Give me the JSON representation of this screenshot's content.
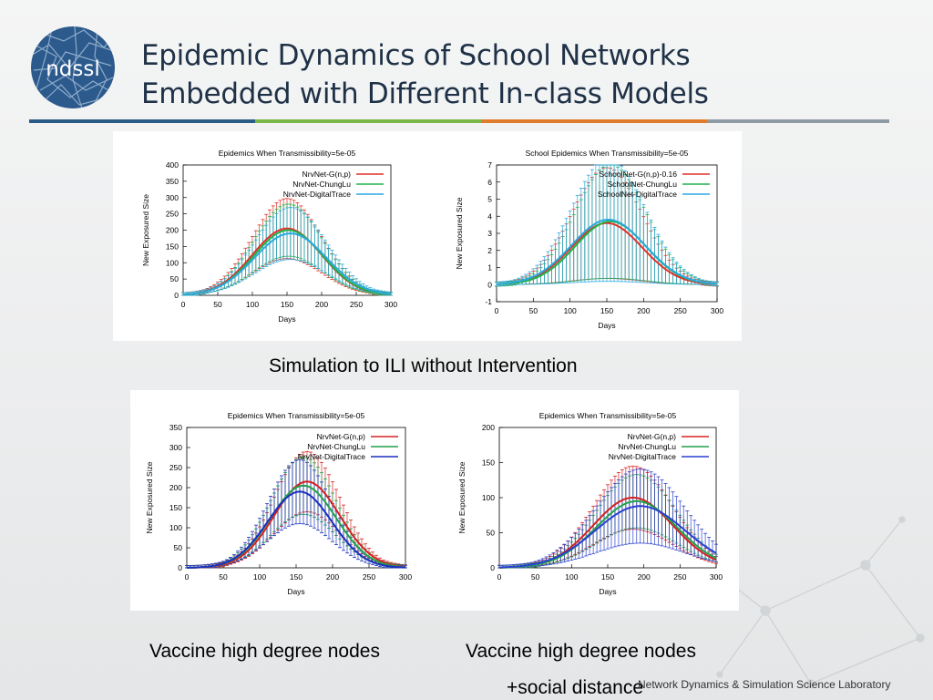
{
  "slide": {
    "title_line1": "Epidemic Dynamics of School Networks",
    "title_line2": "Embedded with Different In-class Models",
    "logo_text": "ndssl",
    "rule_colors": [
      "#2a5a86",
      "#7ab648",
      "#e07b2b",
      "#8e9aa4"
    ],
    "caption_top": "Simulation to ILI without Intervention",
    "caption_bottom_left": "Vaccine high degree nodes",
    "caption_bottom_right_line1": "Vaccine high degree nodes",
    "caption_bottom_right_line2": "+social distance",
    "footer": "Network Dynamics & Simulation Science Laboratory"
  },
  "chart_data": [
    {
      "type": "line",
      "title": "Epidemics When Transmissibility=5e-05",
      "xlabel": "Days",
      "ylabel": "New Exposured Size",
      "xlim": [
        0,
        300
      ],
      "ylim": [
        0,
        400
      ],
      "xticks": [
        0,
        50,
        100,
        150,
        200,
        250,
        300
      ],
      "yticks": [
        0,
        50,
        100,
        150,
        200,
        250,
        300,
        350,
        400
      ],
      "legend_position": "top-right",
      "error_bars": true,
      "series": [
        {
          "name": "NrvNet-G(n,p)",
          "color": "#e0302a",
          "peak_day": 150,
          "peak": 205,
          "width": 50,
          "error": 0.45
        },
        {
          "name": "NrvNet-ChungLu",
          "color": "#22b24c",
          "peak_day": 152,
          "peak": 200,
          "width": 50,
          "error": 0.4
        },
        {
          "name": "NrvNet-DigitalTrace",
          "color": "#2aa8e0",
          "peak_day": 155,
          "peak": 190,
          "width": 52,
          "error": 0.42
        }
      ]
    },
    {
      "type": "line",
      "title": "School Epidemics When Transmissibility=5e-05",
      "xlabel": "Days",
      "ylabel": "New Exposured Size",
      "xlim": [
        0,
        300
      ],
      "ylim": [
        -1,
        7
      ],
      "xticks": [
        0,
        50,
        100,
        150,
        200,
        250,
        300
      ],
      "yticks": [
        -1,
        0,
        1,
        2,
        3,
        4,
        5,
        6,
        7
      ],
      "legend_position": "top-right",
      "error_bars": true,
      "series": [
        {
          "name": "SchoolNet-G(n,p)-0.16",
          "color": "#e0302a",
          "peak_day": 150,
          "peak": 3.6,
          "width": 48,
          "error": 0.9
        },
        {
          "name": "SchoolNet-ChungLu",
          "color": "#22b24c",
          "peak_day": 155,
          "peak": 3.7,
          "width": 48,
          "error": 0.9
        },
        {
          "name": "SchoolNet-DigitalTrace",
          "color": "#2aa8e0",
          "peak_day": 152,
          "peak": 3.8,
          "width": 50,
          "error": 0.95
        }
      ]
    },
    {
      "type": "line",
      "title": "Epidemics When Transmissibility=5e-05",
      "xlabel": "Days",
      "ylabel": "New Exposured Size",
      "xlim": [
        0,
        300
      ],
      "ylim": [
        0,
        350
      ],
      "xticks": [
        0,
        50,
        100,
        150,
        200,
        250,
        300
      ],
      "yticks": [
        0,
        50,
        100,
        150,
        200,
        250,
        300,
        350
      ],
      "legend_position": "top-right",
      "error_bars": true,
      "series": [
        {
          "name": "NrvNet-G(n,p)",
          "color": "#d62020",
          "peak_day": 165,
          "peak": 215,
          "width": 45,
          "error": 0.35
        },
        {
          "name": "NrvNet-ChungLu",
          "color": "#22a04c",
          "peak_day": 160,
          "peak": 205,
          "width": 45,
          "error": 0.35
        },
        {
          "name": "NrvNet-DigitalTrace",
          "color": "#1a2fbf",
          "peak_day": 155,
          "peak": 190,
          "width": 44,
          "error": 0.42
        }
      ]
    },
    {
      "type": "line",
      "title": "Epidemics When Transmissibility=5e-05",
      "xlabel": "Days",
      "ylabel": "New Exposured Size",
      "xlim": [
        0,
        300
      ],
      "ylim": [
        0,
        200
      ],
      "xticks": [
        0,
        50,
        100,
        150,
        200,
        250,
        300
      ],
      "yticks": [
        0,
        50,
        100,
        150,
        200
      ],
      "legend_position": "top-right",
      "error_bars": true,
      "series": [
        {
          "name": "NrvNet-G(n,p)",
          "color": "#d62020",
          "peak_day": 185,
          "peak": 100,
          "width": 55,
          "error": 0.45
        },
        {
          "name": "NrvNet-ChungLu",
          "color": "#22a04c",
          "peak_day": 190,
          "peak": 95,
          "width": 56,
          "error": 0.4
        },
        {
          "name": "NrvNet-DigitalTrace",
          "color": "#2a3fcf",
          "peak_day": 195,
          "peak": 88,
          "width": 62,
          "error": 0.6
        }
      ]
    }
  ]
}
